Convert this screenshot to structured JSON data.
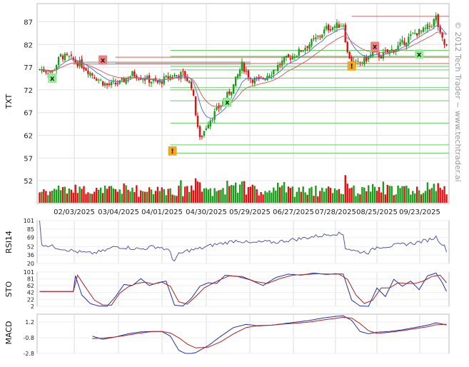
{
  "watermark": "© 2012 Tech Trader ~ www.techtrader.ai",
  "colors": {
    "up": "#1a9e1a",
    "down": "#dd1111",
    "ma_short": "#5577cc",
    "ma_long": "#cc6666",
    "support": "#66cc66",
    "resistance": "#cc6666",
    "gray_line": "#999999",
    "rsi": "#5555aa",
    "sto_k": "#2233aa",
    "sto_d": "#aa2222",
    "macd": "#2233aa",
    "signal": "#aa2222",
    "sell_marker": "#f08080",
    "buy_marker": "#90ee90",
    "alert_marker": "#f5a623"
  },
  "chart_data": [
    {
      "type": "candlestick",
      "ylabel": "TXT",
      "ylim": [
        47,
        91
      ],
      "yticks": [
        52,
        57,
        62,
        67,
        72,
        77,
        82,
        87
      ],
      "date_labels": [
        "02/03/2025",
        "03/04/2025",
        "04/01/2025",
        "04/30/2025",
        "05/29/2025",
        "06/27/2025",
        "07/28/2025",
        "08/25/2025",
        "09/23/2025"
      ],
      "price_path": [
        [
          0,
          76.5
        ],
        [
          6,
          76
        ],
        [
          10,
          79.5
        ],
        [
          14,
          79
        ],
        [
          20,
          77.5
        ],
        [
          26,
          75
        ],
        [
          32,
          73
        ],
        [
          38,
          73.5
        ],
        [
          44,
          75.5
        ],
        [
          50,
          74.5
        ],
        [
          56,
          73.5
        ],
        [
          62,
          75
        ],
        [
          68,
          75.5
        ],
        [
          72,
          73
        ],
        [
          74,
          67
        ],
        [
          76,
          61
        ],
        [
          80,
          65
        ],
        [
          84,
          67.5
        ],
        [
          88,
          70
        ],
        [
          92,
          73
        ],
        [
          96,
          77.5
        ],
        [
          100,
          74.5
        ],
        [
          104,
          74
        ],
        [
          110,
          76
        ],
        [
          116,
          78.5
        ],
        [
          122,
          80
        ],
        [
          126,
          81.5
        ],
        [
          132,
          83.5
        ],
        [
          136,
          85.5
        ],
        [
          140,
          86
        ],
        [
          144,
          86.5
        ],
        [
          146,
          80
        ],
        [
          148,
          78.5
        ],
        [
          150,
          77.5
        ],
        [
          154,
          78.5
        ],
        [
          158,
          80
        ],
        [
          162,
          79.5
        ],
        [
          166,
          80.5
        ],
        [
          170,
          81.5
        ],
        [
          174,
          83
        ],
        [
          178,
          84.5
        ],
        [
          182,
          85
        ],
        [
          186,
          86.5
        ],
        [
          188,
          88
        ],
        [
          190,
          84
        ],
        [
          192,
          82
        ],
        [
          193,
          81.5
        ]
      ],
      "resistance_levels": [
        88.2,
        79.2,
        77.8
      ],
      "support_levels": [
        80.7,
        79.4,
        77.2,
        76.4,
        74.6,
        72.5,
        72.0,
        69.6,
        64.7,
        59.9,
        58.1
      ],
      "gray_levels": [
        78.1,
        77.7
      ],
      "markers": [
        {
          "kind": "buy",
          "label": "x",
          "index": 6,
          "price": 74.5
        },
        {
          "kind": "sell",
          "label": "x",
          "index": 30,
          "price": 78.5
        },
        {
          "kind": "alert",
          "label": "!",
          "index": 63,
          "price": 58.5
        },
        {
          "kind": "buy",
          "label": "x",
          "index": 89,
          "price": 69.2
        },
        {
          "kind": "alert",
          "label": "!",
          "index": 148,
          "price": 77.2
        },
        {
          "kind": "sell",
          "label": "x",
          "index": 159,
          "price": 81.5
        },
        {
          "kind": "buy",
          "label": "x",
          "index": 180,
          "price": 79.8
        }
      ]
    },
    {
      "type": "line",
      "ylabel": "RSI14",
      "ylim": [
        20,
        101
      ],
      "yticks": [
        101,
        85,
        69,
        52,
        36,
        20
      ],
      "rsi_path": [
        [
          0,
          101
        ],
        [
          1,
          57
        ],
        [
          6,
          52
        ],
        [
          12,
          47
        ],
        [
          18,
          42
        ],
        [
          24,
          39
        ],
        [
          30,
          43
        ],
        [
          36,
          52
        ],
        [
          42,
          50
        ],
        [
          48,
          47
        ],
        [
          54,
          52
        ],
        [
          58,
          50
        ],
        [
          62,
          42
        ],
        [
          63,
          30
        ],
        [
          64,
          25
        ],
        [
          66,
          37
        ],
        [
          70,
          44
        ],
        [
          76,
          48
        ],
        [
          82,
          55
        ],
        [
          88,
          59
        ],
        [
          94,
          64
        ],
        [
          100,
          58
        ],
        [
          106,
          61
        ],
        [
          112,
          60
        ],
        [
          118,
          64
        ],
        [
          124,
          67
        ],
        [
          130,
          71
        ],
        [
          136,
          74
        ],
        [
          140,
          77
        ],
        [
          144,
          75
        ],
        [
          145,
          50
        ],
        [
          150,
          43
        ],
        [
          156,
          41
        ],
        [
          160,
          51
        ],
        [
          166,
          53
        ],
        [
          172,
          56
        ],
        [
          178,
          59
        ],
        [
          184,
          64
        ],
        [
          188,
          70
        ],
        [
          192,
          52
        ],
        [
          193,
          45
        ]
      ]
    },
    {
      "type": "line",
      "ylabel": "STO",
      "ylim": [
        2,
        101
      ],
      "yticks": [
        101,
        81,
        62,
        42,
        22,
        2
      ],
      "sto_k_path": [
        [
          0,
          45
        ],
        [
          16,
          45
        ],
        [
          17,
          90
        ],
        [
          20,
          35
        ],
        [
          24,
          10
        ],
        [
          28,
          3
        ],
        [
          32,
          2
        ],
        [
          36,
          30
        ],
        [
          40,
          65
        ],
        [
          44,
          62
        ],
        [
          48,
          82
        ],
        [
          52,
          62
        ],
        [
          56,
          70
        ],
        [
          60,
          75
        ],
        [
          64,
          5
        ],
        [
          68,
          3
        ],
        [
          72,
          25
        ],
        [
          76,
          60
        ],
        [
          80,
          70
        ],
        [
          84,
          68
        ],
        [
          88,
          92
        ],
        [
          94,
          88
        ],
        [
          100,
          78
        ],
        [
          106,
          62
        ],
        [
          112,
          85
        ],
        [
          118,
          95
        ],
        [
          124,
          92
        ],
        [
          130,
          98
        ],
        [
          136,
          94
        ],
        [
          140,
          96
        ],
        [
          144,
          95
        ],
        [
          148,
          20
        ],
        [
          152,
          3
        ],
        [
          156,
          2
        ],
        [
          160,
          55
        ],
        [
          164,
          30
        ],
        [
          168,
          80
        ],
        [
          172,
          60
        ],
        [
          176,
          75
        ],
        [
          180,
          50
        ],
        [
          184,
          90
        ],
        [
          188,
          98
        ],
        [
          191,
          70
        ],
        [
          193,
          45
        ]
      ],
      "sto_d_path": [
        [
          0,
          45
        ],
        [
          16,
          45
        ],
        [
          18,
          92
        ],
        [
          22,
          55
        ],
        [
          26,
          20
        ],
        [
          30,
          6
        ],
        [
          34,
          5
        ],
        [
          38,
          40
        ],
        [
          42,
          58
        ],
        [
          46,
          68
        ],
        [
          50,
          72
        ],
        [
          54,
          66
        ],
        [
          58,
          72
        ],
        [
          62,
          60
        ],
        [
          66,
          15
        ],
        [
          70,
          8
        ],
        [
          74,
          30
        ],
        [
          78,
          55
        ],
        [
          82,
          68
        ],
        [
          86,
          80
        ],
        [
          90,
          90
        ],
        [
          96,
          88
        ],
        [
          102,
          74
        ],
        [
          108,
          68
        ],
        [
          114,
          82
        ],
        [
          120,
          92
        ],
        [
          126,
          94
        ],
        [
          132,
          96
        ],
        [
          138,
          95
        ],
        [
          142,
          95
        ],
        [
          146,
          80
        ],
        [
          150,
          35
        ],
        [
          154,
          10
        ],
        [
          158,
          20
        ],
        [
          162,
          55
        ],
        [
          166,
          55
        ],
        [
          170,
          70
        ],
        [
          174,
          68
        ],
        [
          178,
          68
        ],
        [
          182,
          75
        ],
        [
          186,
          88
        ],
        [
          190,
          92
        ],
        [
          193,
          70
        ]
      ]
    },
    {
      "type": "line",
      "ylabel": "MACD",
      "ylim": [
        -2.8,
        2.2
      ],
      "yticks": [
        1.2,
        -0.8,
        -2.8
      ],
      "macd_path": [
        [
          25,
          -0.6
        ],
        [
          30,
          -1.0
        ],
        [
          36,
          -0.7
        ],
        [
          42,
          -0.3
        ],
        [
          48,
          -0.05
        ],
        [
          54,
          0.0
        ],
        [
          58,
          0.0
        ],
        [
          62,
          -0.6
        ],
        [
          66,
          -2.4
        ],
        [
          70,
          -2.9
        ],
        [
          74,
          -2.7
        ],
        [
          80,
          -1.8
        ],
        [
          86,
          -0.6
        ],
        [
          92,
          0.5
        ],
        [
          98,
          0.9
        ],
        [
          104,
          0.7
        ],
        [
          110,
          0.8
        ],
        [
          116,
          1.0
        ],
        [
          122,
          1.2
        ],
        [
          128,
          1.4
        ],
        [
          134,
          1.7
        ],
        [
          140,
          1.9
        ],
        [
          144,
          2.0
        ],
        [
          148,
          1.4
        ],
        [
          152,
          0.0
        ],
        [
          156,
          -0.3
        ],
        [
          160,
          -0.1
        ],
        [
          166,
          0.0
        ],
        [
          172,
          0.2
        ],
        [
          178,
          0.5
        ],
        [
          184,
          0.8
        ],
        [
          188,
          1.1
        ],
        [
          192,
          0.9
        ],
        [
          193,
          0.8
        ]
      ],
      "signal_path": [
        [
          25,
          -0.9
        ],
        [
          30,
          -0.85
        ],
        [
          36,
          -0.7
        ],
        [
          42,
          -0.45
        ],
        [
          48,
          -0.2
        ],
        [
          54,
          0.0
        ],
        [
          58,
          0.0
        ],
        [
          62,
          -0.2
        ],
        [
          66,
          -0.8
        ],
        [
          70,
          -1.6
        ],
        [
          74,
          -2.1
        ],
        [
          80,
          -2.0
        ],
        [
          86,
          -1.3
        ],
        [
          92,
          -0.3
        ],
        [
          98,
          0.5
        ],
        [
          104,
          0.75
        ],
        [
          110,
          0.8
        ],
        [
          116,
          0.95
        ],
        [
          122,
          1.05
        ],
        [
          128,
          1.2
        ],
        [
          134,
          1.45
        ],
        [
          140,
          1.65
        ],
        [
          144,
          1.8
        ],
        [
          148,
          1.7
        ],
        [
          152,
          1.0
        ],
        [
          156,
          0.1
        ],
        [
          160,
          -0.25
        ],
        [
          166,
          -0.1
        ],
        [
          172,
          0.1
        ],
        [
          178,
          0.35
        ],
        [
          184,
          0.6
        ],
        [
          188,
          0.85
        ],
        [
          192,
          0.9
        ],
        [
          193,
          0.9
        ]
      ]
    }
  ]
}
